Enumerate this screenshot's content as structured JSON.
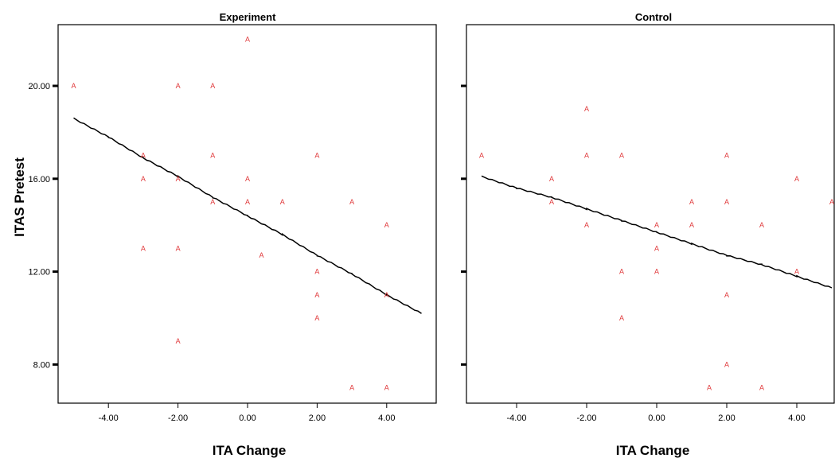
{
  "chart_data": {
    "type": "scatter",
    "ylabel": "ITAS Pretest",
    "marker_symbol": "A",
    "marker_color": "#e0393b",
    "line_color": "#000000",
    "xlim": [
      -5.3,
      5.0
    ],
    "ylim": [
      6.5,
      23.0
    ],
    "xticks": [
      -4,
      -2,
      0,
      2,
      4
    ],
    "xtick_labels": [
      "-4.00",
      "-2.00",
      "0.00",
      "2.00",
      "4.00"
    ],
    "yticks": [
      8,
      12,
      16,
      20
    ],
    "ytick_labels": [
      "8.00",
      "12.00",
      "16.00",
      "20.00"
    ],
    "panels": [
      {
        "title": "Experiment",
        "xlabel": "ITA Change",
        "points": [
          {
            "x": -5,
            "y": 20
          },
          {
            "x": -2,
            "y": 20
          },
          {
            "x": -1,
            "y": 20
          },
          {
            "x": 0,
            "y": 22
          },
          {
            "x": -3,
            "y": 17
          },
          {
            "x": -1,
            "y": 17
          },
          {
            "x": 2,
            "y": 17
          },
          {
            "x": -3,
            "y": 16
          },
          {
            "x": -2,
            "y": 16
          },
          {
            "x": 0,
            "y": 16
          },
          {
            "x": -1,
            "y": 15
          },
          {
            "x": 0,
            "y": 15
          },
          {
            "x": 1,
            "y": 15
          },
          {
            "x": 3,
            "y": 15
          },
          {
            "x": 4,
            "y": 14
          },
          {
            "x": -3,
            "y": 13
          },
          {
            "x": -2,
            "y": 13
          },
          {
            "x": 0.4,
            "y": 12.7
          },
          {
            "x": 2,
            "y": 12
          },
          {
            "x": 2,
            "y": 11
          },
          {
            "x": 4,
            "y": 11
          },
          {
            "x": 2,
            "y": 10
          },
          {
            "x": -2,
            "y": 9
          },
          {
            "x": 3,
            "y": 7
          },
          {
            "x": 4,
            "y": 7
          }
        ],
        "fit_line": [
          {
            "x": -5.0,
            "y": 18.6
          },
          {
            "x": -4.0,
            "y": 17.8
          },
          {
            "x": -3.0,
            "y": 16.9
          },
          {
            "x": -2.0,
            "y": 16.1
          },
          {
            "x": -1.0,
            "y": 15.2
          },
          {
            "x": 0.0,
            "y": 14.4
          },
          {
            "x": 1.0,
            "y": 13.6
          },
          {
            "x": 2.0,
            "y": 12.7
          },
          {
            "x": 3.0,
            "y": 11.9
          },
          {
            "x": 4.0,
            "y": 11.0
          },
          {
            "x": 5.0,
            "y": 10.2
          }
        ]
      },
      {
        "title": "Control",
        "xlabel": "ITA Change",
        "points": [
          {
            "x": -2,
            "y": 19
          },
          {
            "x": -5,
            "y": 17
          },
          {
            "x": -2,
            "y": 17
          },
          {
            "x": -1,
            "y": 17
          },
          {
            "x": 2,
            "y": 17
          },
          {
            "x": -3,
            "y": 16
          },
          {
            "x": 4,
            "y": 16
          },
          {
            "x": -3,
            "y": 15
          },
          {
            "x": 1,
            "y": 15
          },
          {
            "x": 2,
            "y": 15
          },
          {
            "x": 5,
            "y": 15
          },
          {
            "x": -2,
            "y": 14
          },
          {
            "x": 0,
            "y": 14
          },
          {
            "x": 1,
            "y": 14
          },
          {
            "x": 3,
            "y": 14
          },
          {
            "x": 0,
            "y": 13
          },
          {
            "x": -1,
            "y": 12
          },
          {
            "x": 0,
            "y": 12
          },
          {
            "x": 4,
            "y": 12
          },
          {
            "x": 2,
            "y": 11
          },
          {
            "x": -1,
            "y": 10
          },
          {
            "x": 2,
            "y": 8
          },
          {
            "x": 1.5,
            "y": 7
          },
          {
            "x": 3,
            "y": 7
          }
        ],
        "fit_line": [
          {
            "x": -5.0,
            "y": 16.1
          },
          {
            "x": -4.0,
            "y": 15.6
          },
          {
            "x": -3.0,
            "y": 15.2
          },
          {
            "x": -2.0,
            "y": 14.7
          },
          {
            "x": -1.0,
            "y": 14.2
          },
          {
            "x": 0.0,
            "y": 13.7
          },
          {
            "x": 1.0,
            "y": 13.2
          },
          {
            "x": 2.0,
            "y": 12.7
          },
          {
            "x": 3.0,
            "y": 12.3
          },
          {
            "x": 4.0,
            "y": 11.8
          },
          {
            "x": 5.0,
            "y": 11.3
          }
        ]
      }
    ]
  }
}
